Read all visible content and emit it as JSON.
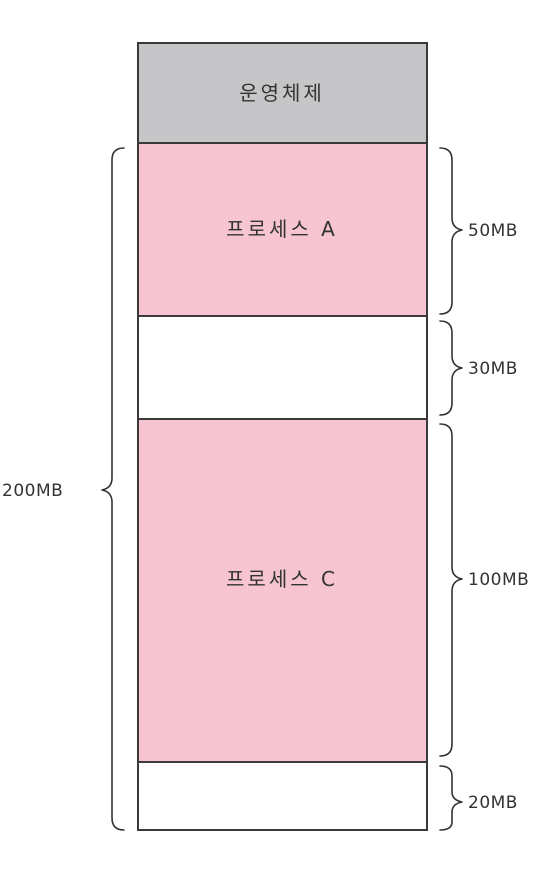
{
  "colors": {
    "os": "#c6c6c8",
    "process": "#f6c5d1",
    "free": "#ffffff",
    "outline": "#3a3a3a"
  },
  "blocks": [
    {
      "kind": "os",
      "label": "운영체제"
    },
    {
      "kind": "process",
      "label": "프로세스 A",
      "size_label": "50MB"
    },
    {
      "kind": "free",
      "label": "",
      "size_label": "30MB"
    },
    {
      "kind": "process",
      "label": "프로세스 C",
      "size_label": "100MB"
    },
    {
      "kind": "free",
      "label": "",
      "size_label": "20MB"
    }
  ],
  "total_label": "200MB"
}
